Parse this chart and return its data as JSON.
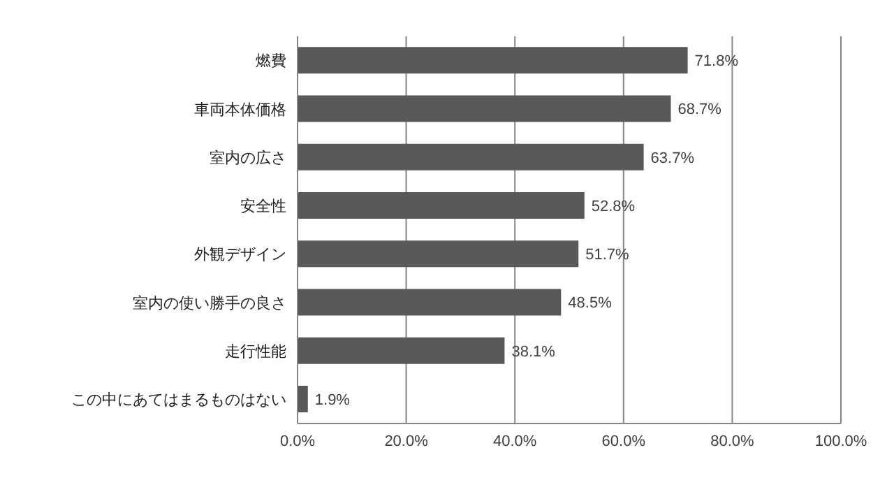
{
  "chart_data": {
    "type": "bar",
    "orientation": "horizontal",
    "categories": [
      "燃費",
      "車両本体価格",
      "室内の広さ",
      "安全性",
      "外観デザイン",
      "室内の使い勝手の良さ",
      "走行性能",
      "この中にあてはまるものはない"
    ],
    "values": [
      71.8,
      68.7,
      63.7,
      52.8,
      51.7,
      48.5,
      38.1,
      1.9
    ],
    "value_labels": [
      "71.8%",
      "68.7%",
      "63.7%",
      "52.8%",
      "51.7%",
      "48.5%",
      "38.1%",
      "1.9%"
    ],
    "color": "#595959",
    "xlim": [
      0,
      100
    ],
    "xticks": [
      {
        "value": 0,
        "label": "0.0%"
      },
      {
        "value": 20,
        "label": "20.0%"
      },
      {
        "value": 40,
        "label": "40.0%"
      },
      {
        "value": 60,
        "label": "60.0%"
      },
      {
        "value": 80,
        "label": "80.0%"
      },
      {
        "value": 100,
        "label": "100.0%"
      }
    ],
    "grid": "x"
  }
}
